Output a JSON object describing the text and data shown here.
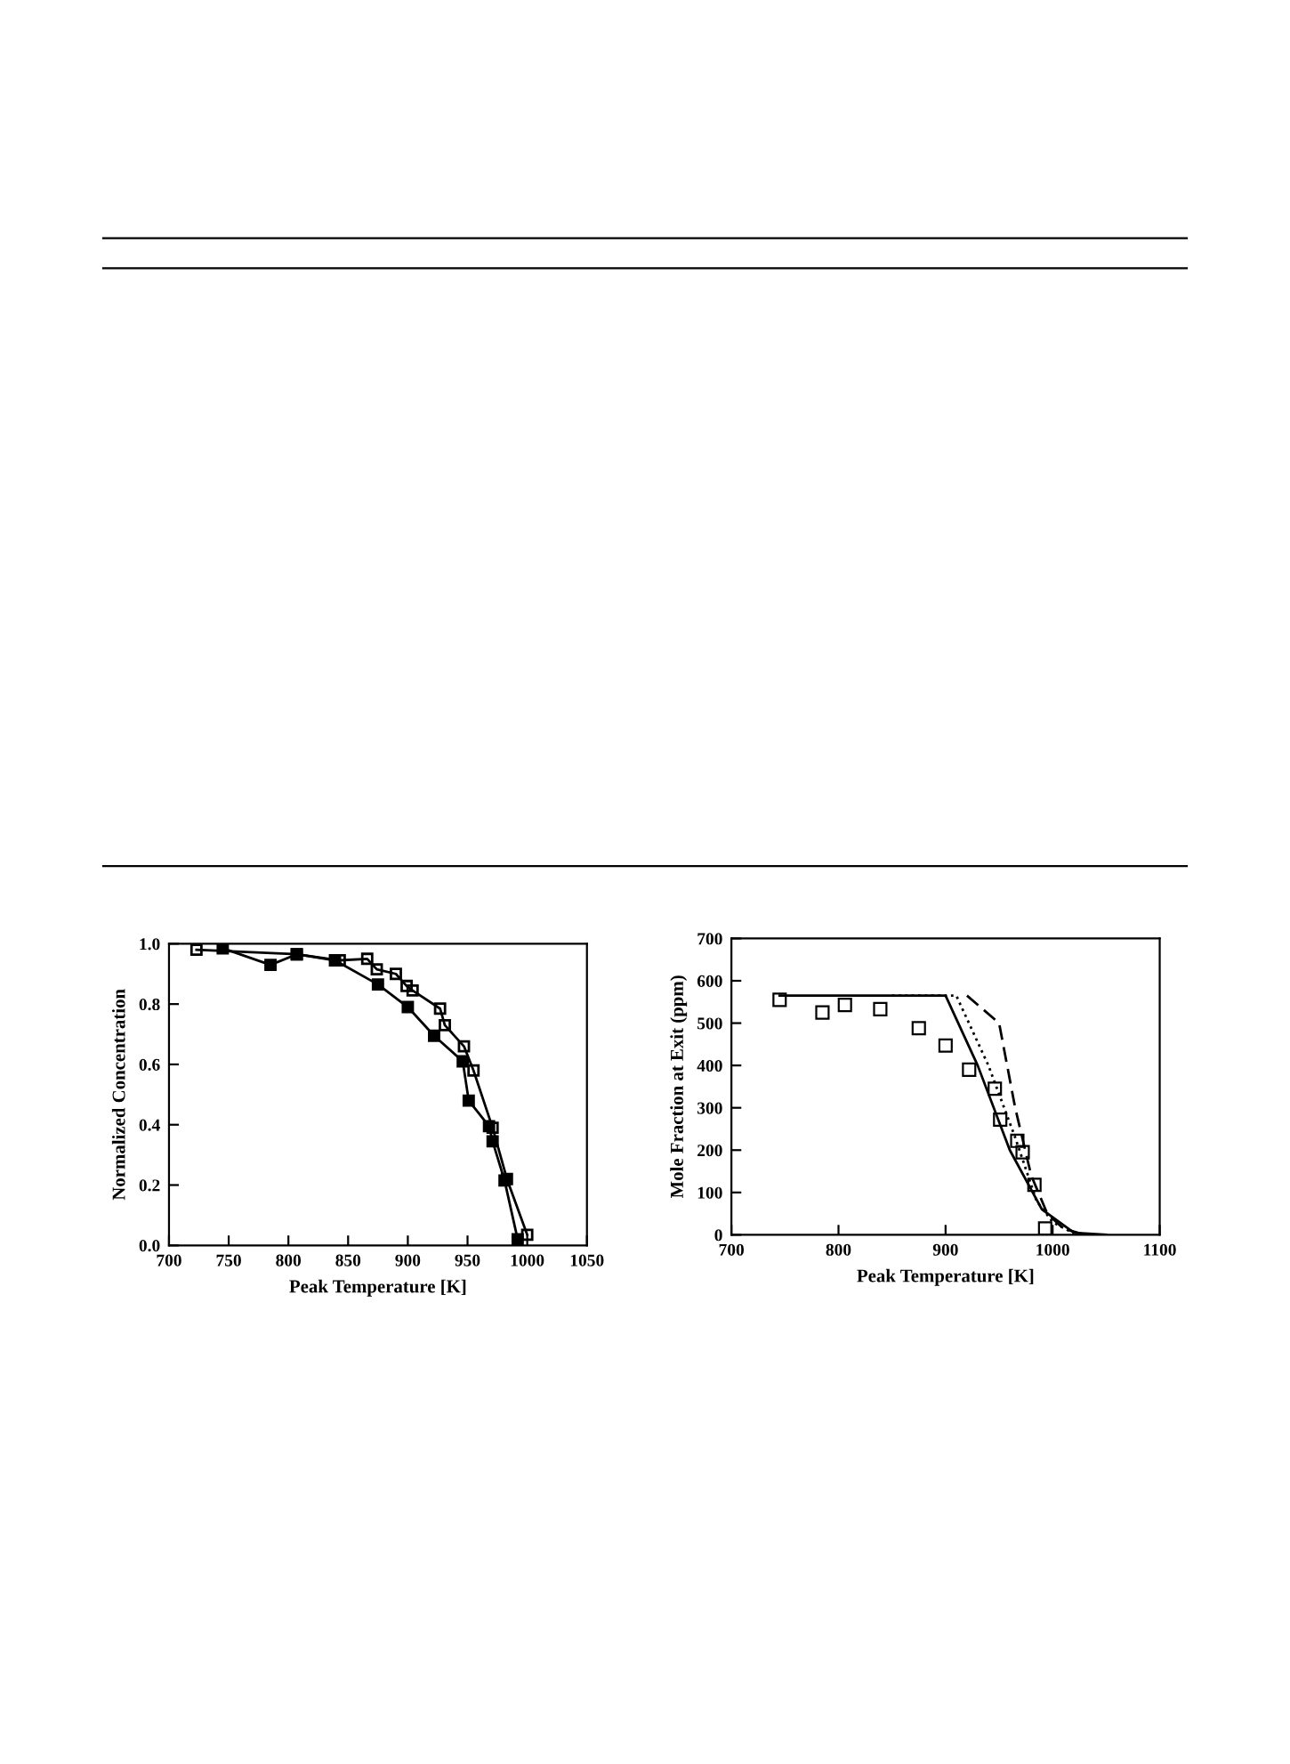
{
  "chart_data": [
    {
      "type": "line",
      "xlabel": "Peak Temperature [K]",
      "ylabel": "Normalized Concentration",
      "xlim": [
        700,
        1050
      ],
      "xticks": [
        700,
        750,
        800,
        850,
        900,
        950,
        1000,
        1050
      ],
      "ylim": [
        0,
        1
      ],
      "yticks": [
        {
          "value": 0,
          "label": "0.0"
        },
        {
          "value": 0.2,
          "label": "0.2"
        },
        {
          "value": 0.4,
          "label": "0.4"
        },
        {
          "value": 0.6,
          "label": "0.6"
        },
        {
          "value": 0.8,
          "label": "0.8"
        },
        {
          "value": 1,
          "label": "1.0"
        }
      ],
      "grid": false,
      "series": [
        {
          "color": "#000000",
          "marker": "square",
          "x": [
            723,
            807,
            843,
            866,
            874,
            890,
            899,
            904,
            927,
            931,
            947,
            955,
            971,
            983,
            1000
          ],
          "values": [
            0.98,
            0.965,
            0.945,
            0.95,
            0.915,
            0.9,
            0.86,
            0.845,
            0.785,
            0.73,
            0.66,
            0.58,
            0.39,
            0.22,
            0.035
          ]
        },
        {
          "color": "#000000",
          "marker": "square",
          "x": [
            745,
            785,
            807,
            839,
            875,
            900,
            922,
            946,
            951,
            968,
            971,
            981,
            992
          ],
          "values": [
            0.985,
            0.93,
            0.965,
            0.945,
            0.865,
            0.79,
            0.695,
            0.61,
            0.48,
            0.395,
            0.345,
            0.215,
            0.02
          ]
        }
      ]
    },
    {
      "type": "line",
      "xlabel": "Peak Temperature [K]",
      "ylabel": "Mole Fraction at Exit (ppm)",
      "xlim": [
        700,
        1100
      ],
      "xticks": [
        700,
        800,
        900,
        1000,
        1100
      ],
      "ylim": [
        0,
        700
      ],
      "yticks": [
        0,
        100,
        200,
        300,
        400,
        500,
        600,
        700
      ],
      "grid": false,
      "series": [
        {
          "type": "scatter",
          "color": "#000000",
          "marker": "square",
          "x": [
            745,
            785,
            806,
            839,
            875,
            900,
            922,
            946,
            951,
            967,
            972,
            983,
            993
          ],
          "values": [
            555,
            525,
            543,
            533,
            488,
            447,
            390,
            345,
            272,
            222,
            195,
            118,
            15
          ]
        },
        {
          "color": "#000000",
          "line_style": "solid",
          "x": [
            745,
            900,
            930,
            960,
            990,
            1020,
            1050
          ],
          "values": [
            565,
            565,
            400,
            200,
            60,
            5,
            0
          ]
        },
        {
          "color": "#000000",
          "line_style": "dotted",
          "x": [
            850,
            910,
            940,
            965,
            985,
            1000,
            1020
          ],
          "values": [
            565,
            565,
            400,
            230,
            80,
            30,
            3
          ]
        },
        {
          "color": "#000000",
          "line_style": "dashed",
          "x": [
            920,
            950,
            965,
            980,
            995,
            1010,
            1030
          ],
          "values": [
            565,
            500,
            300,
            140,
            50,
            15,
            0
          ]
        }
      ]
    }
  ]
}
